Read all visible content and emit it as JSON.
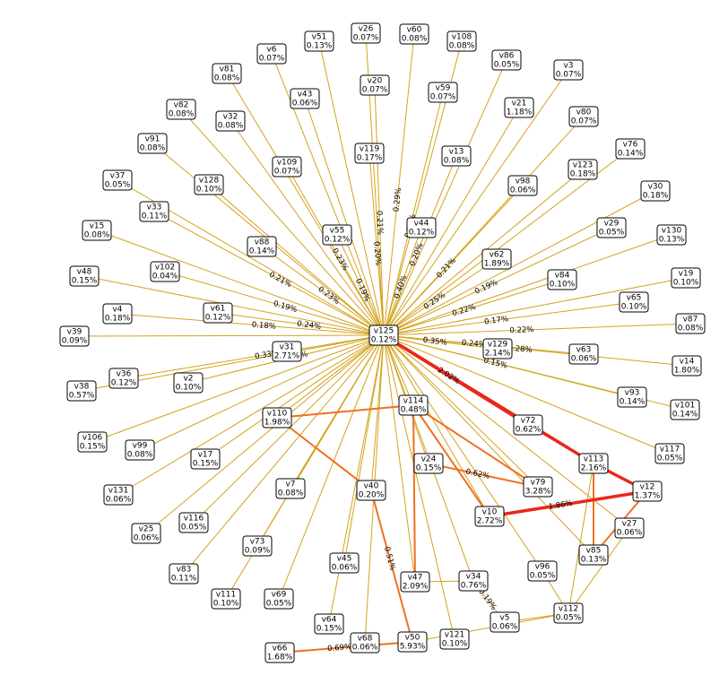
{
  "nodes": [
    {
      "name": "v26",
      "value": "0.07%"
    },
    {
      "name": "v60",
      "value": "0.08%"
    },
    {
      "name": "v51",
      "value": "0.13%"
    },
    {
      "name": "v108",
      "value": "0.08%"
    },
    {
      "name": "v6",
      "value": "0.07%"
    },
    {
      "name": "v86",
      "value": "0.05%"
    },
    {
      "name": "v3",
      "value": "0.07%"
    },
    {
      "name": "v81",
      "value": "0.08%"
    },
    {
      "name": "v20",
      "value": "0.07%"
    },
    {
      "name": "v59",
      "value": "0.07%"
    },
    {
      "name": "v43",
      "value": "0.06%"
    },
    {
      "name": "v82",
      "value": "0.08%"
    },
    {
      "name": "v21",
      "value": "1.18%"
    },
    {
      "name": "v80",
      "value": "0.07%"
    },
    {
      "name": "v32",
      "value": "0.08%"
    },
    {
      "name": "v91",
      "value": "0.08%"
    },
    {
      "name": "v119",
      "value": "0.17%"
    },
    {
      "name": "v13",
      "value": "0.08%"
    },
    {
      "name": "v76",
      "value": "0.14%"
    },
    {
      "name": "v109",
      "value": "0.07%"
    },
    {
      "name": "v123",
      "value": "0.18%"
    },
    {
      "name": "v37",
      "value": "0.05%"
    },
    {
      "name": "v98",
      "value": "0.06%"
    },
    {
      "name": "v128",
      "value": "0.10%"
    },
    {
      "name": "v30",
      "value": "0.18%"
    },
    {
      "name": "v33",
      "value": "0.11%"
    },
    {
      "name": "v44",
      "value": "0.12%"
    },
    {
      "name": "v55",
      "value": "0.12%"
    },
    {
      "name": "v29",
      "value": "0.05%"
    },
    {
      "name": "v130",
      "value": "0.13%"
    },
    {
      "name": "v15",
      "value": "0.08%"
    },
    {
      "name": "v88",
      "value": "0.14%"
    },
    {
      "name": "v62",
      "value": "1.89%"
    },
    {
      "name": "v102",
      "value": "0.04%"
    },
    {
      "name": "v48",
      "value": "0.15%"
    },
    {
      "name": "v84",
      "value": "0.10%"
    },
    {
      "name": "v19",
      "value": "0.10%"
    },
    {
      "name": "v65",
      "value": "0.10%"
    },
    {
      "name": "v4",
      "value": "0.18%"
    },
    {
      "name": "v61",
      "value": "0.12%"
    },
    {
      "name": "v87",
      "value": "0.08%"
    },
    {
      "name": "v39",
      "value": "0.09%"
    },
    {
      "name": "v125",
      "value": "0.12%"
    },
    {
      "name": "v129",
      "value": "2.14%"
    },
    {
      "name": "v63",
      "value": "0.06%"
    },
    {
      "name": "v31",
      "value": "2.71%"
    },
    {
      "name": "v14",
      "value": "1.80%"
    },
    {
      "name": "v36",
      "value": "0.12%"
    },
    {
      "name": "v2",
      "value": "0.10%"
    },
    {
      "name": "v38",
      "value": "0.57%"
    },
    {
      "name": "v93",
      "value": "0.14%"
    },
    {
      "name": "v101",
      "value": "0.14%"
    },
    {
      "name": "v114",
      "value": "0.48%"
    },
    {
      "name": "v110",
      "value": "1.98%"
    },
    {
      "name": "v72",
      "value": "0.62%"
    },
    {
      "name": "v106",
      "value": "0.15%"
    },
    {
      "name": "v99",
      "value": "0.08%"
    },
    {
      "name": "v117",
      "value": "0.05%"
    },
    {
      "name": "v17",
      "value": "0.15%"
    },
    {
      "name": "v24",
      "value": "0.15%"
    },
    {
      "name": "v113",
      "value": "2.16%"
    },
    {
      "name": "v79",
      "value": "3.28%"
    },
    {
      "name": "v7",
      "value": "0.08%"
    },
    {
      "name": "v40",
      "value": "0.20%"
    },
    {
      "name": "v12",
      "value": "1.37%"
    },
    {
      "name": "v131",
      "value": "0.06%"
    },
    {
      "name": "v10",
      "value": "2.72%"
    },
    {
      "name": "v116",
      "value": "0.05%"
    },
    {
      "name": "v27",
      "value": "0.06%"
    },
    {
      "name": "v25",
      "value": "0.06%"
    },
    {
      "name": "v73",
      "value": "0.09%"
    },
    {
      "name": "v85",
      "value": "0.13%"
    },
    {
      "name": "v45",
      "value": "0.06%"
    },
    {
      "name": "v83",
      "value": "0.11%"
    },
    {
      "name": "v96",
      "value": "0.05%"
    },
    {
      "name": "v47",
      "value": "2.09%"
    },
    {
      "name": "v34",
      "value": "0.76%"
    },
    {
      "name": "v111",
      "value": "0.10%"
    },
    {
      "name": "v69",
      "value": "0.05%"
    },
    {
      "name": "v112",
      "value": "0.05%"
    },
    {
      "name": "v64",
      "value": "0.15%"
    },
    {
      "name": "v5",
      "value": "0.06%"
    },
    {
      "name": "v121",
      "value": "0.10%"
    },
    {
      "name": "v68",
      "value": "0.06%"
    },
    {
      "name": "v50",
      "value": "5.93%"
    },
    {
      "name": "v66",
      "value": "1.68%"
    }
  ],
  "edges": [
    {
      "source": "v125",
      "target": "v119",
      "label": "0.20%",
      "color": "#d4a21b"
    },
    {
      "source": "v125",
      "target": "v44",
      "label": "0.40%",
      "color": "#d4a21b"
    },
    {
      "source": "v125",
      "target": "v55",
      "label": "0.19%",
      "color": "#d4a21b"
    },
    {
      "source": "v125",
      "target": "v88",
      "label": "0.23%",
      "color": "#d4a21b"
    },
    {
      "source": "v125",
      "target": "v102",
      "label": "0.19%",
      "color": "#d4a21b"
    },
    {
      "source": "v125",
      "target": "v61",
      "label": "0.24%",
      "color": "#d4a21b"
    },
    {
      "source": "v125",
      "target": "v4",
      "label": "0.18%",
      "color": "#d4a21b"
    },
    {
      "source": "v125",
      "target": "v36",
      "label": "0.33%",
      "color": "#d4a21b"
    },
    {
      "source": "v125",
      "target": "v2",
      "label": "0.31%",
      "color": "#d4a21b"
    },
    {
      "source": "v125",
      "target": "v129",
      "label": "0.35%",
      "color": "#d4a21b"
    },
    {
      "source": "v125",
      "target": "v62",
      "label": "0.25%",
      "color": "#d4a21b"
    },
    {
      "source": "v125",
      "target": "v84",
      "label": "0.22%",
      "color": "#d4a21b"
    },
    {
      "source": "v125",
      "target": "v65",
      "label": "0.17%",
      "color": "#d4a21b"
    },
    {
      "source": "v125",
      "target": "v87",
      "label": "0.22%",
      "color": "#d4a21b"
    },
    {
      "source": "v125",
      "target": "v63",
      "label": "0.24%",
      "color": "#d4a21b"
    },
    {
      "source": "v125",
      "target": "v14",
      "label": "0.28%",
      "color": "#d4a21b"
    },
    {
      "source": "v125",
      "target": "v93",
      "label": "0.15%",
      "color": "#d4a21b"
    },
    {
      "source": "v125",
      "target": "v33",
      "label": "0.21%",
      "color": "#d4a21b"
    },
    {
      "source": "v125",
      "target": "v109",
      "label": "0.23%",
      "color": "#d4a21b"
    },
    {
      "source": "v125",
      "target": "v20",
      "label": "0.21%",
      "color": "#d4a21b"
    },
    {
      "source": "v125",
      "target": "v60",
      "label": "0.29%",
      "color": "#d4a21b"
    },
    {
      "source": "v125",
      "target": "v59",
      "label": "0.21%",
      "color": "#d4a21b"
    },
    {
      "source": "v125",
      "target": "v13",
      "label": "0.20%",
      "color": "#d4a21b"
    },
    {
      "source": "v125",
      "target": "v98",
      "label": "0.21%",
      "color": "#d4a21b"
    },
    {
      "source": "v125",
      "target": "v29",
      "label": "0.19%",
      "color": "#d4a21b"
    },
    {
      "source": "v125",
      "target": "v26",
      "color": "#d4a21b"
    },
    {
      "source": "v125",
      "target": "v51",
      "color": "#d4a21b"
    },
    {
      "source": "v125",
      "target": "v108",
      "color": "#d4a21b"
    },
    {
      "source": "v125",
      "target": "v6",
      "color": "#d4a21b"
    },
    {
      "source": "v125",
      "target": "v86",
      "color": "#d4a21b"
    },
    {
      "source": "v125",
      "target": "v3",
      "color": "#d4a21b"
    },
    {
      "source": "v125",
      "target": "v81",
      "color": "#d4a21b"
    },
    {
      "source": "v125",
      "target": "v43",
      "color": "#d4a21b"
    },
    {
      "source": "v125",
      "target": "v82",
      "color": "#d4a21b"
    },
    {
      "source": "v125",
      "target": "v21",
      "color": "#d4a21b"
    },
    {
      "source": "v125",
      "target": "v80",
      "color": "#d4a21b"
    },
    {
      "source": "v125",
      "target": "v32",
      "color": "#d4a21b"
    },
    {
      "source": "v125",
      "target": "v91",
      "color": "#d4a21b"
    },
    {
      "source": "v125",
      "target": "v76",
      "color": "#d4a21b"
    },
    {
      "source": "v125",
      "target": "v123",
      "color": "#d4a21b"
    },
    {
      "source": "v125",
      "target": "v37",
      "color": "#d4a21b"
    },
    {
      "source": "v125",
      "target": "v128",
      "color": "#d4a21b"
    },
    {
      "source": "v125",
      "target": "v30",
      "color": "#d4a21b"
    },
    {
      "source": "v125",
      "target": "v130",
      "color": "#d4a21b"
    },
    {
      "source": "v125",
      "target": "v15",
      "color": "#d4a21b"
    },
    {
      "source": "v125",
      "target": "v48",
      "color": "#d4a21b"
    },
    {
      "source": "v125",
      "target": "v19",
      "color": "#d4a21b"
    },
    {
      "source": "v125",
      "target": "v39",
      "color": "#d4a21b"
    },
    {
      "source": "v125",
      "target": "v31",
      "color": "#d4a21b"
    },
    {
      "source": "v125",
      "target": "v38",
      "color": "#d4a21b"
    },
    {
      "source": "v125",
      "target": "v101",
      "color": "#d4a21b"
    },
    {
      "source": "v125",
      "target": "v114",
      "color": "#d4a21b"
    },
    {
      "source": "v125",
      "target": "v110",
      "color": "#d4a21b"
    },
    {
      "source": "v125",
      "target": "v106",
      "color": "#d4a21b"
    },
    {
      "source": "v125",
      "target": "v99",
      "color": "#d4a21b"
    },
    {
      "source": "v125",
      "target": "v117",
      "color": "#d4a21b"
    },
    {
      "source": "v125",
      "target": "v17",
      "color": "#d4a21b"
    },
    {
      "source": "v125",
      "target": "v24",
      "color": "#d4a21b"
    },
    {
      "source": "v125",
      "target": "v79",
      "color": "#d4a21b"
    },
    {
      "source": "v125",
      "target": "v7",
      "color": "#d4a21b"
    },
    {
      "source": "v125",
      "target": "v40",
      "color": "#d4a21b"
    },
    {
      "source": "v125",
      "target": "v131",
      "color": "#d4a21b"
    },
    {
      "source": "v125",
      "target": "v10",
      "color": "#d4a21b"
    },
    {
      "source": "v125",
      "target": "v116",
      "color": "#d4a21b"
    },
    {
      "source": "v125",
      "target": "v25",
      "color": "#d4a21b"
    },
    {
      "source": "v125",
      "target": "v73",
      "color": "#d4a21b"
    },
    {
      "source": "v125",
      "target": "v45",
      "color": "#d4a21b"
    },
    {
      "source": "v125",
      "target": "v83",
      "color": "#d4a21b"
    },
    {
      "source": "v125",
      "target": "v47",
      "color": "#d4a21b"
    },
    {
      "source": "v125",
      "target": "v111",
      "color": "#d4a21b"
    },
    {
      "source": "v125",
      "target": "v69",
      "color": "#d4a21b"
    },
    {
      "source": "v125",
      "target": "v64",
      "color": "#d4a21b"
    },
    {
      "source": "v125",
      "target": "v121",
      "color": "#d4a21b"
    },
    {
      "source": "v125",
      "target": "v68",
      "color": "#d4a21b"
    },
    {
      "source": "v125",
      "target": "v27",
      "color": "#d4a21b"
    },
    {
      "source": "v125",
      "target": "v85",
      "color": "#d4a21b"
    },
    {
      "source": "v125",
      "target": "v96",
      "color": "#d4a21b"
    },
    {
      "source": "v125",
      "target": "v34",
      "color": "#d4a21b"
    },
    {
      "source": "v125",
      "target": "v72",
      "label": "2.02%",
      "color": "#e8281a"
    },
    {
      "source": "v125",
      "target": "v113",
      "color": "#e8281a"
    },
    {
      "source": "v113",
      "target": "v12",
      "color": "#e8281a"
    },
    {
      "source": "v10",
      "target": "v12",
      "label": "1.86%",
      "color": "#e8281a"
    },
    {
      "source": "v114",
      "target": "v110",
      "color": "#f07020"
    },
    {
      "source": "v114",
      "target": "v47",
      "color": "#f07020"
    },
    {
      "source": "v114",
      "target": "v10",
      "color": "#f07020"
    },
    {
      "source": "v114",
      "target": "v79",
      "color": "#f07020"
    },
    {
      "source": "v12",
      "target": "v85",
      "color": "#f07020"
    },
    {
      "source": "v113",
      "target": "v85",
      "color": "#f07020"
    },
    {
      "source": "v40",
      "target": "v50",
      "label": "0.51%",
      "color": "#f07020"
    },
    {
      "source": "v110",
      "target": "v40",
      "color": "#f07020"
    },
    {
      "source": "v66",
      "target": "v50",
      "label": "0.69%",
      "color": "#f07020"
    },
    {
      "source": "v24",
      "target": "v79",
      "label": "0.62%",
      "color": "#f07020"
    },
    {
      "source": "v72",
      "target": "v113",
      "color": "#f07020"
    },
    {
      "source": "v34",
      "target": "v5",
      "label": "0.19%",
      "color": "#d4a21b"
    },
    {
      "source": "v5",
      "target": "v112",
      "color": "#d4a21b"
    },
    {
      "source": "v50",
      "target": "v112",
      "color": "#d4a21b"
    },
    {
      "source": "v47",
      "target": "v34",
      "color": "#d4a21b"
    },
    {
      "source": "v113",
      "target": "v112",
      "color": "#d4a21b"
    },
    {
      "source": "v96",
      "target": "v112",
      "color": "#d4a21b"
    },
    {
      "source": "v112",
      "target": "v27",
      "color": "#d4a21b"
    }
  ]
}
